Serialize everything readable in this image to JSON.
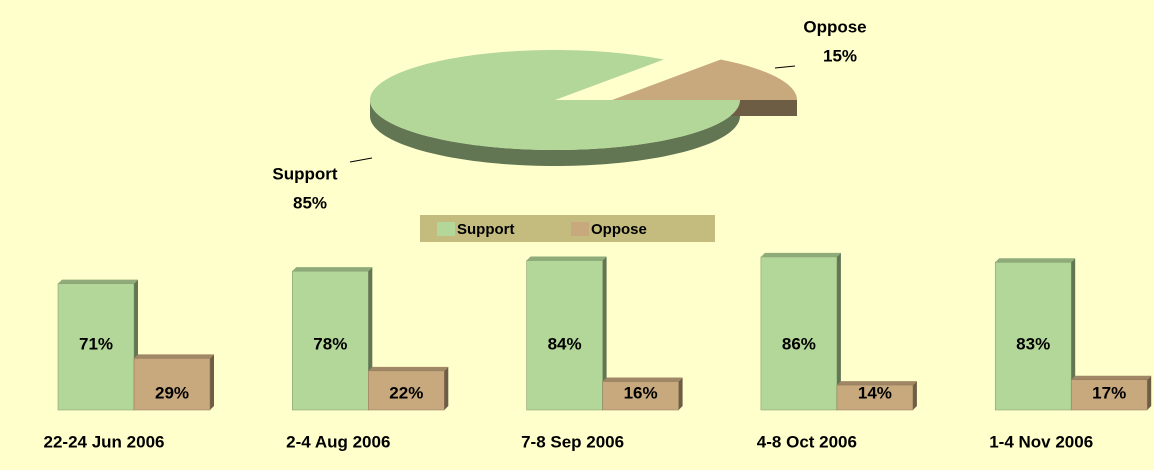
{
  "chart_data": [
    {
      "type": "pie",
      "categories": [
        "Support",
        "Oppose"
      ],
      "values": [
        85,
        15
      ],
      "value_labels": [
        "85%",
        "15%"
      ],
      "colors": [
        "#B3D699",
        "#C8A97E"
      ]
    },
    {
      "type": "bar",
      "categories": [
        "22-24 Jun 2006",
        "2-4 Aug 2006",
        "7-8 Sep 2006",
        "4-8 Oct 2006",
        "1-4 Nov 2006"
      ],
      "series": [
        {
          "name": "Support",
          "color": "#B3D699",
          "values": [
            71,
            78,
            84,
            86,
            83
          ],
          "value_labels": [
            "71%",
            "78%",
            "84%",
            "86%",
            "83%"
          ]
        },
        {
          "name": "Oppose",
          "color": "#C8A97E",
          "values": [
            29,
            22,
            16,
            14,
            17
          ],
          "value_labels": [
            "29%",
            "22%",
            "16%",
            "14%",
            "17%"
          ]
        }
      ]
    }
  ]
}
